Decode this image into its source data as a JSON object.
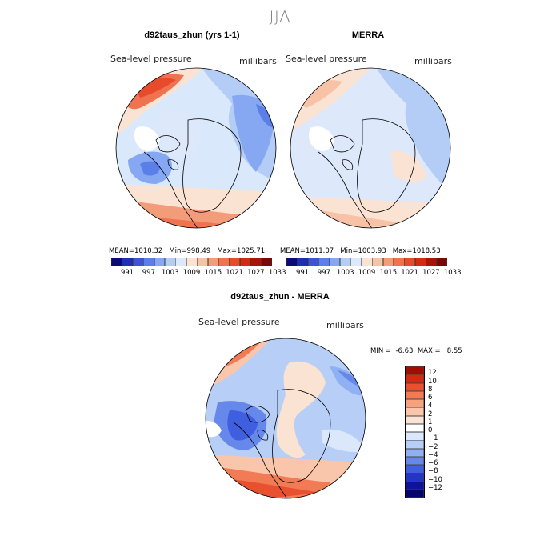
{
  "season": "JJA",
  "panels": {
    "model": {
      "title": "d92taus_zhun (yrs 1-1)",
      "variable": "Sea-level pressure",
      "units": "millibars",
      "stats": {
        "mean_label": "MEAN=",
        "mean": "1010.32",
        "min_label": "Min=",
        "min": "998.49",
        "max_label": "Max=",
        "max": "1025.71"
      }
    },
    "obs": {
      "title": "MERRA",
      "variable": "Sea-level pressure",
      "units": "millibars",
      "stats": {
        "mean_label": "MEAN=",
        "mean": "1011.07",
        "min_label": "Min=",
        "min": "1003.93",
        "max_label": "Max=",
        "max": "1018.53"
      }
    },
    "diff": {
      "title": "d92taus_zhun - MERRA",
      "variable": "Sea-level pressure",
      "units": "millibars",
      "stats": {
        "min_label": "MIN =",
        "min": "-6.63",
        "max_label": "MAX =",
        "max": "8.55"
      }
    }
  },
  "colorbar_abs": {
    "ticks": [
      "991",
      "997",
      "1003",
      "1009",
      "1015",
      "1021",
      "1027",
      "1033"
    ],
    "colors": [
      "#0a0a7a",
      "#1c2fb5",
      "#3b55d8",
      "#5b7fe8",
      "#86a8f2",
      "#b4cdf6",
      "#dde8fa",
      "#fbe3d4",
      "#f7c2a6",
      "#f39c7a",
      "#ef7350",
      "#e74b2c",
      "#d42a14",
      "#a91407",
      "#7a0903"
    ]
  },
  "colorbar_diff": {
    "ticks": [
      "12",
      "10",
      "8",
      "6",
      "4",
      "2",
      "1",
      "0",
      "−1",
      "−2",
      "−4",
      "−6",
      "−8",
      "−10",
      "−12"
    ],
    "colors": [
      "#a00d04",
      "#d22913",
      "#e8502f",
      "#f17b55",
      "#f6a27f",
      "#f9c6ab",
      "#fbe3d4",
      "#ffffff",
      "#dbe7fa",
      "#b7cef6",
      "#8fb0f2",
      "#6688ea",
      "#3f5ee0",
      "#2236c4",
      "#0d139a",
      "#05056e"
    ]
  },
  "map_colors": {
    "ocean_bg": "#d9e8fa",
    "coast": "#000000"
  }
}
